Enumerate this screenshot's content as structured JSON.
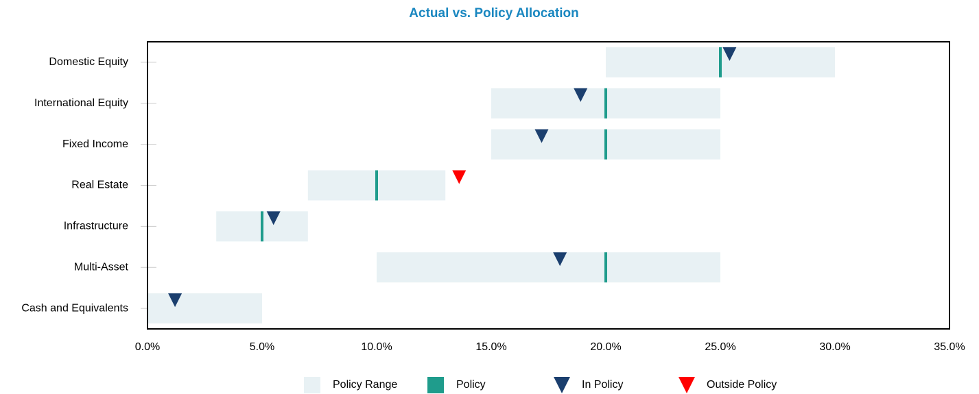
{
  "chart_data": {
    "type": "range_bar",
    "title": "Actual vs. Policy Allocation",
    "categories": [
      "Domestic Equity",
      "International Equity",
      "Fixed Income",
      "Real Estate",
      "Infrastructure",
      "Multi-Asset",
      "Cash and Equivalents"
    ],
    "series": [
      {
        "name": "Policy Range",
        "color": "#e8f1f4",
        "low": [
          20,
          15,
          15,
          7,
          3,
          10,
          0
        ],
        "high": [
          30,
          25,
          25,
          13,
          7,
          25,
          5
        ]
      },
      {
        "name": "Policy",
        "color": "#1f9c8c",
        "values": [
          25,
          20,
          20,
          10,
          5,
          20,
          null
        ]
      },
      {
        "name": "In Policy",
        "color": "#1b3f6e",
        "values": [
          25.4,
          18.9,
          17.2,
          null,
          5.5,
          18.0,
          1.2
        ]
      },
      {
        "name": "Outside Policy",
        "color": "#ff0000",
        "values": [
          null,
          null,
          null,
          13.6,
          null,
          null,
          null
        ]
      }
    ],
    "xlim": [
      0,
      35
    ],
    "xticks": [
      {
        "value": 0,
        "label": "0.0%"
      },
      {
        "value": 5,
        "label": "5.0%"
      },
      {
        "value": 10,
        "label": "10.0%"
      },
      {
        "value": 15,
        "label": "15.0%"
      },
      {
        "value": 20,
        "label": "20.0%"
      },
      {
        "value": 25,
        "label": "25.0%"
      },
      {
        "value": 30,
        "label": "30.0%"
      },
      {
        "value": 35,
        "label": "35.0%"
      }
    ]
  }
}
